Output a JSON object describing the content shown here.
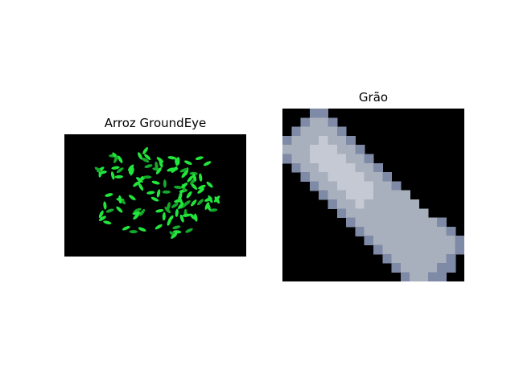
{
  "figure": {
    "left_panel": {
      "title": "Arroz GroundEye",
      "colors": {
        "background": "#000000",
        "grain": "#22e63c",
        "grain_dark": "#16a82a"
      }
    },
    "right_panel": {
      "title": "Grão",
      "colors": {
        "background": "#000000",
        "grain_fill": "#a9b0bd",
        "grain_edge": "#7f8aa6",
        "grain_light": "#c4c9d3"
      }
    }
  }
}
